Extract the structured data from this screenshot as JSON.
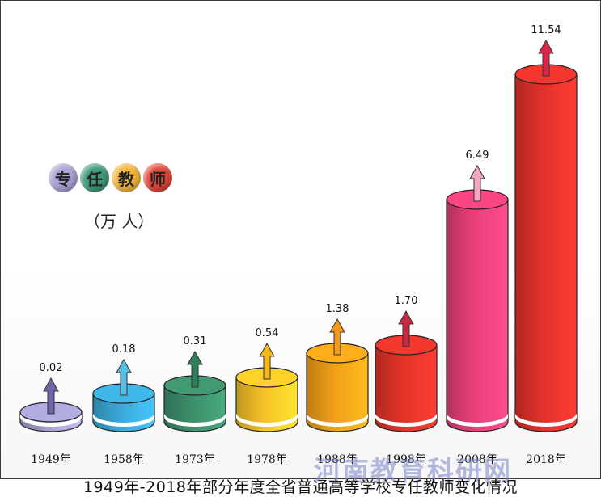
{
  "chart_data": {
    "type": "bar",
    "title_chars": [
      "专",
      "任",
      "教",
      "师"
    ],
    "title_colors": [
      "#a9a3d6",
      "#3f9a78",
      "#f2b63a",
      "#e0463a"
    ],
    "unit": "（万 人）",
    "categories": [
      "1949年",
      "1958年",
      "1973年",
      "1978年",
      "1988年",
      "1998年",
      "2008年",
      "2018年"
    ],
    "values": [
      0.02,
      0.18,
      0.31,
      0.54,
      1.38,
      1.7,
      6.49,
      11.54
    ],
    "value_labels": [
      "0.02",
      "0.18",
      "0.31",
      "0.54",
      "1.38",
      "1.70",
      "6.49",
      "11.54"
    ],
    "colors": [
      "#a5a0cf",
      "#39a9d8",
      "#3d8f6c",
      "#f5c227",
      "#f0a018",
      "#e2342a",
      "#e8407a",
      "#e3322b"
    ],
    "arrow_colors": [
      "#6f67a8",
      "#57bde3",
      "#2f7e5c",
      "#f3b81a",
      "#f19a1f",
      "#c42a43",
      "#f4a6c4",
      "#d8284a"
    ]
  },
  "caption": "1949年-2018年部分年度全省普通高等学校专任教师变化情况",
  "watermark": "河南教育科研网"
}
